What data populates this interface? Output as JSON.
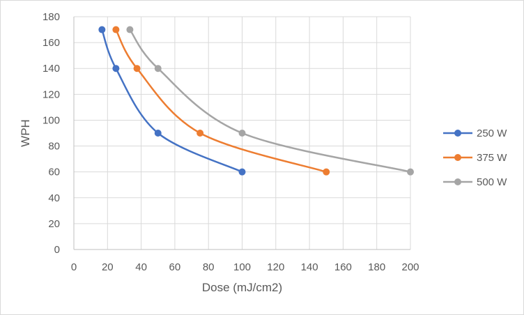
{
  "chart_data": {
    "type": "scatter",
    "title": "",
    "xlabel": "Dose (mJ/cm2)",
    "ylabel": "WPH",
    "xlim": [
      0,
      200
    ],
    "ylim": [
      0,
      180
    ],
    "x_ticks": [
      "0",
      "20",
      "40",
      "60",
      "80",
      "100",
      "120",
      "140",
      "160",
      "180",
      "200"
    ],
    "y_ticks": [
      "0",
      "20",
      "40",
      "60",
      "80",
      "100",
      "120",
      "140",
      "160",
      "180"
    ],
    "grid": true,
    "smooth_lines": true,
    "legend_position": "right",
    "series": [
      {
        "name": "250 W",
        "color": "#4472C4",
        "points": [
          [
            16.7,
            170
          ],
          [
            25,
            140
          ],
          [
            50,
            90
          ],
          [
            100,
            60
          ]
        ]
      },
      {
        "name": "375 W",
        "color": "#ED7D31",
        "points": [
          [
            25,
            170
          ],
          [
            37.5,
            140
          ],
          [
            75,
            90
          ],
          [
            150,
            60
          ]
        ]
      },
      {
        "name": "500 W",
        "color": "#A5A5A5",
        "points": [
          [
            33.3,
            170
          ],
          [
            50,
            140
          ],
          [
            100,
            90
          ],
          [
            200,
            60
          ]
        ]
      }
    ]
  }
}
